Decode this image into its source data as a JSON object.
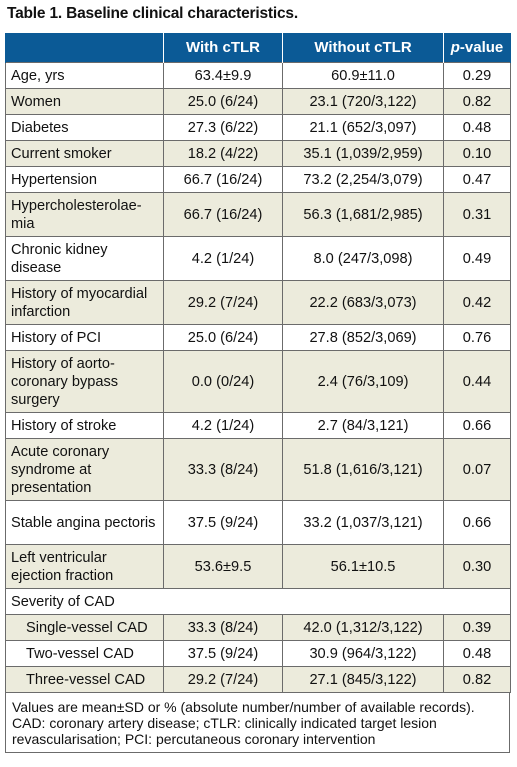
{
  "caption": "Table 1. Baseline clinical characteristics.",
  "headers": {
    "col1": "",
    "col2": "With cTLR",
    "col3": "Without cTLR",
    "col4_italic": "p",
    "col4_rest": "-value"
  },
  "rows": [
    {
      "label": "Age, yrs",
      "with": "63.4±9.9",
      "without": "60.9±11.0",
      "p": "0.29"
    },
    {
      "label": "Women",
      "with": "25.0 (6/24)",
      "without": "23.1 (720/3,122)",
      "p": "0.82"
    },
    {
      "label": "Diabetes",
      "with": "27.3 (6/22)",
      "without": "21.1 (652/3,097)",
      "p": "0.48"
    },
    {
      "label": "Current smoker",
      "with": "18.2 (4/22)",
      "without": "35.1 (1,039/2,959)",
      "p": "0.10"
    },
    {
      "label": "Hypertension",
      "with": "66.7 (16/24)",
      "without": "73.2 (2,254/3,079)",
      "p": "0.47"
    },
    {
      "label": "Hypercholesterolae-mia",
      "with": "66.7 (16/24)",
      "without": "56.3 (1,681/2,985)",
      "p": "0.31"
    },
    {
      "label": "Chronic kidney disease",
      "with": "4.2 (1/24)",
      "without": "8.0 (247/3,098)",
      "p": "0.49"
    },
    {
      "label": "History of myocardial infarction",
      "with": "29.2 (7/24)",
      "without": "22.2 (683/3,073)",
      "p": "0.42"
    },
    {
      "label": "History of PCI",
      "with": "25.0 (6/24)",
      "without": "27.8 (852/3,069)",
      "p": "0.76"
    },
    {
      "label": "History of aorto-coronary bypass surgery",
      "with": "0.0 (0/24)",
      "without": "2.4 (76/3,109)",
      "p": "0.44"
    },
    {
      "label": "History of stroke",
      "with": "4.2 (1/24)",
      "without": "2.7 (84/3,121)",
      "p": "0.66"
    },
    {
      "label": "Acute coronary syndrome at presentation",
      "with": "33.3 (8/24)",
      "without": "51.8 (1,616/3,121)",
      "p": "0.07"
    },
    {
      "label": "Stable angina pectoris",
      "with": "37.5 (9/24)",
      "without": "33.2 (1,037/3,121)",
      "p": "0.66"
    },
    {
      "label": "Left ventricular ejection fraction",
      "with": "53.6±9.5",
      "without": "56.1±10.5",
      "p": "0.30"
    },
    {
      "label": "Severity of CAD",
      "with": "",
      "without": "",
      "p": ""
    },
    {
      "label": "Single-vessel CAD",
      "with": "33.3 (8/24)",
      "without": "42.0 (1,312/3,122)",
      "p": "0.39"
    },
    {
      "label": "Two-vessel CAD",
      "with": "37.5 (9/24)",
      "without": "30.9 (964/3,122)",
      "p": "0.48"
    },
    {
      "label": "Three-vessel CAD",
      "with": "29.2 (7/24)",
      "without": "27.1 (845/3,122)",
      "p": "0.82"
    }
  ],
  "footnote": "Values are mean±SD or % (absolute number/number of available records). CAD: coronary artery disease; cTLR: clinically indicated target lesion revascularisation; PCI: percutaneous coronary intervention",
  "colors": {
    "header_bg": "#0b5a96",
    "shade": "#ecebdc",
    "border": "#6b6b6b"
  }
}
